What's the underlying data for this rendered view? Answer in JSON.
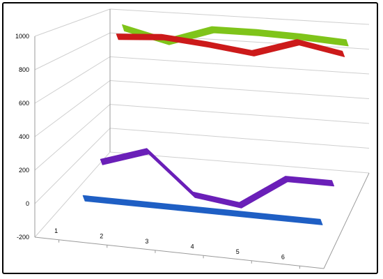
{
  "chart_data": {
    "type": "line",
    "subtype": "3d-ribbon",
    "title": "",
    "xlabel": "",
    "ylabel": "",
    "x": [
      1,
      2,
      3,
      4,
      5,
      6
    ],
    "x_tick_labels": [
      "1",
      "2",
      "3",
      "4",
      "5",
      "6"
    ],
    "y_tick_labels": [
      "-200",
      "0",
      "200",
      "400",
      "600",
      "800",
      "1000"
    ],
    "ylim": [
      -200,
      1000
    ],
    "grid": true,
    "legend": "none",
    "series": [
      {
        "values": [
          0,
          0,
          0,
          0,
          0,
          0
        ],
        "color": "#1f5fc4"
      },
      {
        "values": [
          120,
          220,
          -40,
          -80,
          120,
          120
        ],
        "color": "#6a1fb8"
      },
      {
        "values": [
          910,
          930,
          900,
          860,
          960,
          900
        ],
        "color": "#cc1a1a"
      },
      {
        "values": [
          960,
          880,
          990,
          990,
          980,
          960
        ],
        "color": "#7fc41a"
      }
    ]
  }
}
